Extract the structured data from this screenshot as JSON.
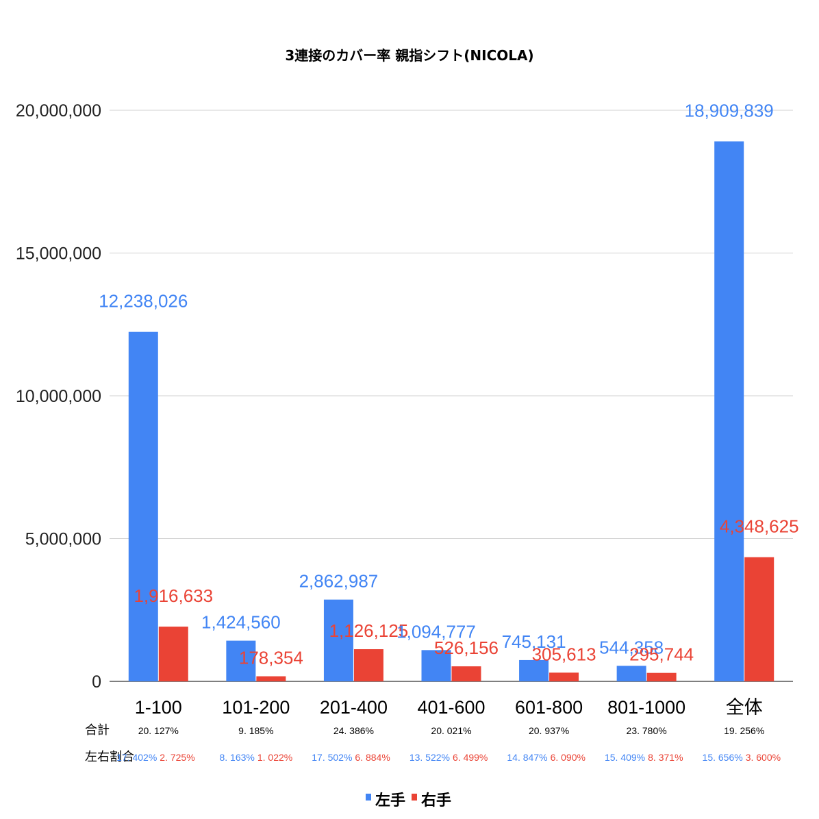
{
  "chart_data": {
    "type": "bar",
    "title": "3連接のカバー率 親指シフト(NICOLA)",
    "categories": [
      "1-100",
      "101-200",
      "201-400",
      "401-600",
      "601-800",
      "801-1000",
      "全体"
    ],
    "series": [
      {
        "name": "左手",
        "color": "#4285f4",
        "values": [
          12238026,
          1424560,
          2862987,
          1094777,
          745131,
          544358,
          18909839
        ],
        "labels": [
          "12,238,026",
          "1,424,560",
          "2,862,987",
          "1,094,777",
          "745,131",
          "544,358",
          "18,909,839"
        ]
      },
      {
        "name": "右手",
        "color": "#ea4335",
        "values": [
          1916633,
          178354,
          1126125,
          526156,
          305613,
          295744,
          4348625
        ],
        "labels": [
          "1,916,633",
          "178,354",
          "1,126,125",
          "526,156",
          "305,613",
          "295,744",
          "4,348,625"
        ]
      }
    ],
    "ylim": [
      0,
      20000000
    ],
    "yticks": [
      0,
      5000000,
      10000000,
      15000000,
      20000000
    ],
    "ytick_labels": [
      "0",
      "5,000,000",
      "10,000,000",
      "15,000,000",
      "20,000,000"
    ],
    "grid": true,
    "legend": "bottom",
    "table": {
      "total_label": "合計",
      "ratio_label": "左右割合",
      "totals": [
        "20. 127%",
        "9. 185%",
        "24. 386%",
        "20. 021%",
        "20. 937%",
        "23. 780%",
        "19. 256%"
      ],
      "left_ratios": [
        "17. 402%",
        "8. 163%",
        "17. 502%",
        "13. 522%",
        "14. 847%",
        "15. 409%",
        "15. 656%"
      ],
      "right_ratios": [
        "2. 725%",
        "1. 022%",
        "6. 884%",
        "6. 499%",
        "6. 090%",
        "8. 371%",
        "3. 600%"
      ]
    }
  }
}
